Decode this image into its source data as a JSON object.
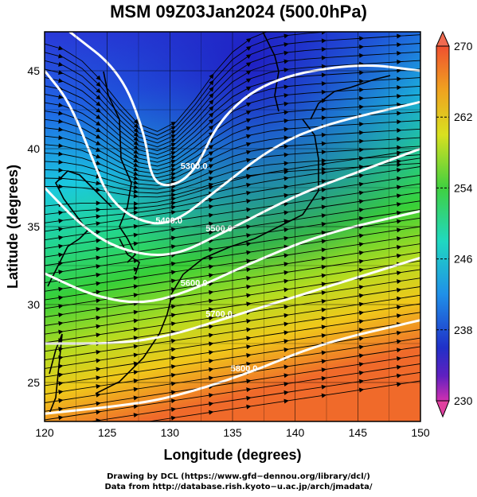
{
  "title": "MSM 09Z03Jan2024 (500.0hPa)",
  "xlabel": "Longitude (degrees)",
  "ylabel": "Latitude  (degrees)",
  "x_ticks": [
    "120",
    "125",
    "130",
    "135",
    "140",
    "145",
    "150"
  ],
  "y_ticks": [
    "25",
    "30",
    "35",
    "40",
    "45"
  ],
  "colorbar_ticks": [
    "270",
    "262",
    "254",
    "246",
    "238",
    "230"
  ],
  "contour_labels": [
    "5300.0",
    "5400.0",
    "5500.0",
    "5600.0",
    "5700.0",
    "5800.0",
    "5700.0"
  ],
  "credit_line1": "Drawing by DCL (https://www.gfd−dennou.org/library/dcl/)",
  "credit_line2": "Data from http://database.rish.kyoto−u.ac.jp/arch/jmadata/",
  "chart_data": {
    "type": "map",
    "xlim": [
      120,
      150
    ],
    "ylim": [
      22.5,
      47.5
    ],
    "colorbar_range": [
      230,
      270
    ],
    "contours": [
      {
        "label": "5300.0",
        "points": [
          [
            122,
            47.5
          ],
          [
            126,
            45
          ],
          [
            128,
            41
          ],
          [
            128.5,
            38
          ],
          [
            130,
            37.5
          ],
          [
            132,
            38.5
          ],
          [
            134,
            42
          ],
          [
            138,
            44.5
          ],
          [
            145,
            45.5
          ],
          [
            150,
            45
          ]
        ]
      },
      {
        "label": "5400.0",
        "points": [
          [
            120,
            45
          ],
          [
            122,
            43
          ],
          [
            124,
            39
          ],
          [
            125,
            37
          ],
          [
            127,
            35.5
          ],
          [
            130,
            35
          ],
          [
            134,
            37.5
          ],
          [
            138,
            40
          ],
          [
            142,
            41.5
          ],
          [
            150,
            43
          ]
        ]
      },
      {
        "label": "5500.0",
        "points": [
          [
            120,
            37.5
          ],
          [
            123,
            35
          ],
          [
            126,
            33.5
          ],
          [
            130,
            33
          ],
          [
            134,
            34.5
          ],
          [
            140,
            37
          ],
          [
            145,
            38.5
          ],
          [
            150,
            40
          ]
        ]
      },
      {
        "label": "5600.0",
        "points": [
          [
            120,
            32
          ],
          [
            124,
            30.5
          ],
          [
            128,
            30
          ],
          [
            132,
            31
          ],
          [
            136,
            32.5
          ],
          [
            142,
            34.5
          ],
          [
            150,
            36
          ]
        ]
      },
      {
        "label": "5700.0",
        "points": [
          [
            120,
            27.5
          ],
          [
            126,
            27.5
          ],
          [
            130,
            28
          ],
          [
            134,
            29
          ],
          [
            140,
            30.5
          ],
          [
            150,
            33
          ]
        ]
      },
      {
        "label": "5800.0",
        "points": [
          [
            120,
            23
          ],
          [
            126,
            23.5
          ],
          [
            130,
            24
          ],
          [
            136,
            25.5
          ],
          [
            142,
            27.5
          ],
          [
            150,
            29
          ]
        ]
      }
    ],
    "colors": {
      "cold": "#1f2fd0",
      "cool": "#1ad6d6",
      "mid": "#2fd040",
      "warm": "#e6d21a",
      "hot": "#f0602a",
      "low_arrow": "#e040a0",
      "high_arrow": "#f07060"
    }
  }
}
